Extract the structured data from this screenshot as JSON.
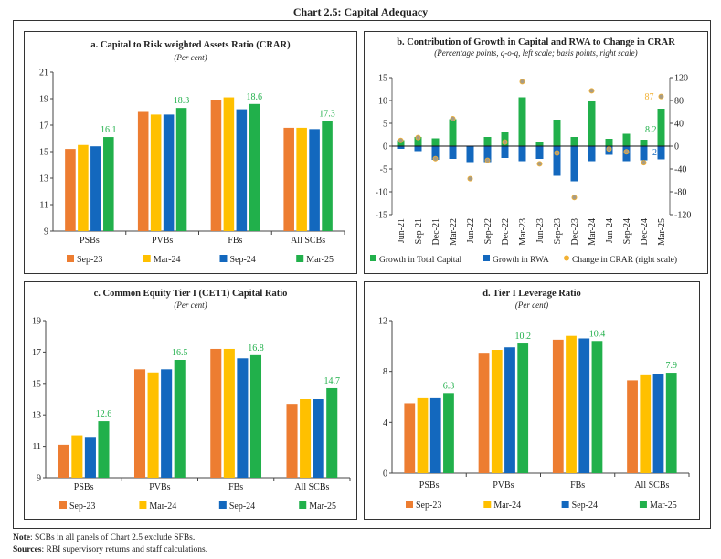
{
  "title": "Chart 2.5: Capital Adequacy",
  "notes": {
    "note_label": "Note",
    "note_text": ": SCBs in all panels of Chart 2.5 exclude SFBs.",
    "sources_label": "Sources",
    "sources_text": ": RBI supervisory returns and staff calculations."
  },
  "colors": {
    "Sep-23": "#ED7D31",
    "Mar-24": "#FFC000",
    "Sep-24": "#1368BE",
    "Mar-25": "#21B04B",
    "dot_fill": "#A89C84",
    "dot_stroke": "#F2B134"
  },
  "chart_data": [
    {
      "id": "a",
      "type": "bar",
      "title": "a. Capital to Risk weighted Assets Ratio (CRAR)",
      "subtitle": "(Per cent)",
      "categories": [
        "PSBs",
        "PVBs",
        "FBs",
        "All SCBs"
      ],
      "ylim": [
        9,
        21
      ],
      "yticks": [
        9,
        11,
        13,
        15,
        17,
        19,
        21
      ],
      "legend_position": "bottom",
      "series": [
        {
          "name": "Sep-23",
          "values": [
            15.2,
            18.0,
            18.9,
            16.8
          ]
        },
        {
          "name": "Mar-24",
          "values": [
            15.5,
            17.8,
            19.1,
            16.8
          ]
        },
        {
          "name": "Sep-24",
          "values": [
            15.4,
            17.8,
            18.2,
            16.7
          ]
        },
        {
          "name": "Mar-25",
          "values": [
            16.1,
            18.3,
            18.6,
            17.3
          ],
          "data_labels": [
            "16.1",
            "18.3",
            "18.6",
            "17.3"
          ]
        }
      ]
    },
    {
      "id": "b",
      "type": "bar",
      "title": "b. Contribution of Growth in Capital and RWA to Change in CRAR",
      "subtitle": "(Percentage points, q-o-q, left scale; basis points, right scale)",
      "categories": [
        "Jun-21",
        "Sep-21",
        "Dec-21",
        "Mar-22",
        "Jun-22",
        "Sep-22",
        "Dec-22",
        "Mar-23",
        "Jun-23",
        "Sep-23",
        "Dec-23",
        "Mar-24",
        "Jun-24",
        "Sep-24",
        "Dec-24",
        "Mar-25"
      ],
      "ylim": [
        -15,
        15
      ],
      "yticks": [
        -15,
        -10,
        -5,
        0,
        5,
        10,
        15
      ],
      "y2lim": [
        -120,
        120
      ],
      "y2ticks": [
        -120,
        -80,
        -40,
        0,
        40,
        80,
        120
      ],
      "legend_position": "bottom",
      "series": [
        {
          "name": "Growth in Total Capital",
          "type": "bar",
          "values": [
            1.3,
            2.0,
            1.7,
            5.9,
            -0.5,
            2.0,
            3.1,
            10.7,
            1.0,
            5.8,
            2.0,
            9.8,
            1.6,
            2.7,
            1.4,
            8.2
          ],
          "last_label": "8.2"
        },
        {
          "name": "Growth in RWA",
          "type": "bar",
          "values": [
            -0.6,
            -1.1,
            -3.0,
            -2.8,
            -3.5,
            -3.5,
            -2.6,
            -3.3,
            -2.8,
            -6.5,
            -7.7,
            -3.3,
            -1.9,
            -3.3,
            -3.1,
            -2.9
          ],
          "last_label": "-2.9"
        },
        {
          "name": "Change in CRAR (right scale)",
          "type": "scatter",
          "axis": "right",
          "values": [
            10,
            15,
            -22,
            48,
            -57,
            -25,
            7,
            113,
            -31,
            -12,
            -90,
            97,
            -5,
            -10,
            -29,
            87
          ],
          "last_label": "87"
        }
      ]
    },
    {
      "id": "c",
      "type": "bar",
      "title": "c. Common Equity Tier I (CET1) Capital Ratio",
      "subtitle": "(Per cent)",
      "categories": [
        "PSBs",
        "PVBs",
        "FBs",
        "All SCBs"
      ],
      "ylim": [
        9,
        19
      ],
      "yticks": [
        9,
        11,
        13,
        15,
        17,
        19
      ],
      "legend_position": "bottom",
      "series": [
        {
          "name": "Sep-23",
          "values": [
            11.1,
            15.9,
            17.2,
            13.7
          ]
        },
        {
          "name": "Mar-24",
          "values": [
            11.7,
            15.7,
            17.2,
            14.0
          ]
        },
        {
          "name": "Sep-24",
          "values": [
            11.6,
            15.9,
            16.6,
            14.0
          ]
        },
        {
          "name": "Mar-25",
          "values": [
            12.6,
            16.5,
            16.8,
            14.7
          ],
          "data_labels": [
            "12.6",
            "16.5",
            "16.8",
            "14.7"
          ]
        }
      ]
    },
    {
      "id": "d",
      "type": "bar",
      "title": "d. Tier I Leverage Ratio",
      "subtitle": "(Per cent)",
      "categories": [
        "PSBs",
        "PVBs",
        "FBs",
        "All SCBs"
      ],
      "ylim": [
        0,
        12
      ],
      "yticks": [
        0,
        4,
        8,
        12
      ],
      "legend_position": "bottom",
      "series": [
        {
          "name": "Sep-23",
          "values": [
            5.5,
            9.4,
            10.5,
            7.3
          ]
        },
        {
          "name": "Mar-24",
          "values": [
            5.9,
            9.7,
            10.8,
            7.7
          ]
        },
        {
          "name": "Sep-24",
          "values": [
            5.9,
            9.9,
            10.6,
            7.8
          ]
        },
        {
          "name": "Mar-25",
          "values": [
            6.3,
            10.2,
            10.4,
            7.9
          ],
          "data_labels": [
            "6.3",
            "10.2",
            "10.4",
            "7.9"
          ]
        }
      ]
    }
  ]
}
